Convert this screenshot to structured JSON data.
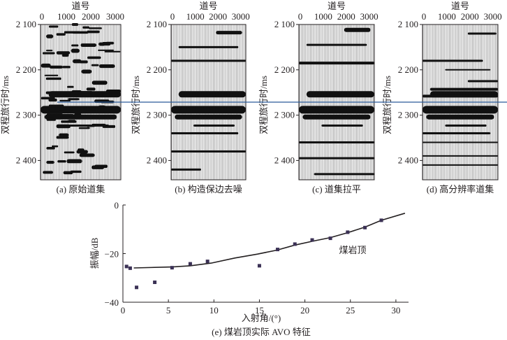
{
  "panels": [
    {
      "id": "a",
      "caption": "(a) 原始道集",
      "top_axis_title": "道号",
      "y_axis_title": "双程旅行时/ms",
      "x_ticks": [
        "0",
        "1000",
        "2000",
        "3000"
      ],
      "y_ticks": [
        "2 100",
        "2 200",
        "2 300",
        "2 400"
      ]
    },
    {
      "id": "b",
      "caption": "(b) 构造保边去噪",
      "top_axis_title": "道号",
      "y_axis_title": "双程旅行时/ms",
      "x_ticks": [
        "0",
        "1000",
        "2000",
        "3000"
      ],
      "y_ticks": [
        "2 100",
        "2 200",
        "2 300",
        "2 400"
      ]
    },
    {
      "id": "c",
      "caption": "(c) 道集拉平",
      "top_axis_title": "道号",
      "y_axis_title": "双程旅行时/ms",
      "x_ticks": [
        "0",
        "1000",
        "2000",
        "3000"
      ],
      "y_ticks": [
        "2 100",
        "2 200",
        "2 300",
        "2 400"
      ]
    },
    {
      "id": "d",
      "caption": "(d) 高分辨率道集",
      "top_axis_title": "道号",
      "y_axis_title": "双程旅行时/ms",
      "x_ticks": [
        "0",
        "1000",
        "2000",
        "3000"
      ],
      "y_ticks": [
        "2 100",
        "2 200",
        "2 300",
        "2 400"
      ]
    }
  ],
  "horizon_line_color": "#2a5b9a",
  "chart_data": {
    "type": "scatter",
    "caption": "(e) 煤岩顶实际 AVO 特征",
    "xlabel": "入射角/(°)",
    "ylabel": "振幅/dB",
    "xlim": [
      0,
      31
    ],
    "ylim": [
      -40,
      0
    ],
    "x_ticks": [
      "0",
      "5",
      "10",
      "15",
      "20",
      "25",
      "30"
    ],
    "y_ticks": [
      "0",
      "−20",
      "−40"
    ],
    "annotation": "煤岩顶",
    "points_color": "#3b3155",
    "points": [
      [
        0.4,
        -25.3
      ],
      [
        0.8,
        -26.0
      ],
      [
        1.5,
        -33.9
      ],
      [
        3.5,
        -31.8
      ],
      [
        5.4,
        -25.8
      ],
      [
        7.4,
        -24.2
      ],
      [
        9.3,
        -23.2
      ],
      [
        15.0,
        -25.0
      ],
      [
        17.0,
        -18.3
      ],
      [
        18.9,
        -16.1
      ],
      [
        20.8,
        -14.4
      ],
      [
        22.8,
        -13.7
      ],
      [
        24.7,
        -11.2
      ],
      [
        26.6,
        -9.3
      ],
      [
        28.4,
        -6.3
      ]
    ],
    "fit_curve": [
      [
        1.2,
        -25.9
      ],
      [
        5.4,
        -25.5
      ],
      [
        7.4,
        -25.0
      ],
      [
        9.7,
        -23.9
      ],
      [
        12.3,
        -21.8
      ],
      [
        14.8,
        -20.2
      ],
      [
        16.9,
        -18.6
      ],
      [
        18.9,
        -16.5
      ],
      [
        21.0,
        -14.8
      ],
      [
        22.8,
        -13.4
      ],
      [
        24.7,
        -11.4
      ],
      [
        26.6,
        -9.1
      ],
      [
        28.4,
        -6.3
      ],
      [
        31.0,
        -3.4
      ]
    ]
  }
}
